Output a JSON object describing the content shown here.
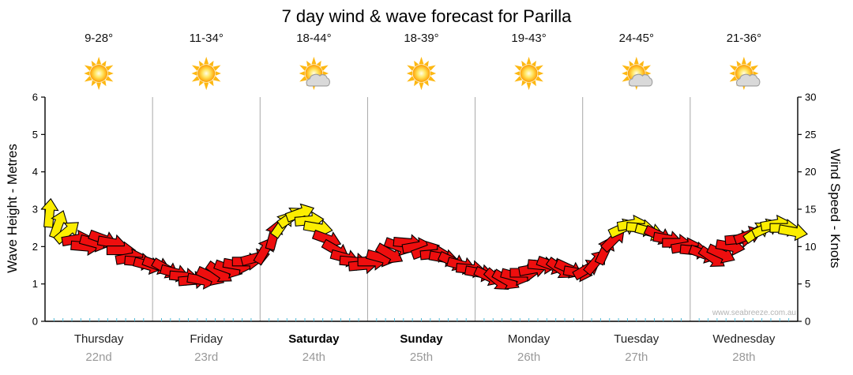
{
  "title": "7 day wind & wave forecast for Parilla",
  "watermark": "www.seabreeze.com.au",
  "days": [
    {
      "name": "Thursday",
      "date": "22nd",
      "temp": "9-28°",
      "icon": "sun",
      "bold": false
    },
    {
      "name": "Friday",
      "date": "23rd",
      "temp": "11-34°",
      "icon": "sun",
      "bold": false
    },
    {
      "name": "Saturday",
      "date": "24th",
      "temp": "18-44°",
      "icon": "sun-cloud",
      "bold": true
    },
    {
      "name": "Sunday",
      "date": "25th",
      "temp": "18-39°",
      "icon": "sun",
      "bold": true
    },
    {
      "name": "Monday",
      "date": "26th",
      "temp": "19-43°",
      "icon": "sun",
      "bold": false
    },
    {
      "name": "Tuesday",
      "date": "27th",
      "temp": "24-45°",
      "icon": "sun-cloud",
      "bold": false
    },
    {
      "name": "Wednesday",
      "date": "28th",
      "temp": "21-36°",
      "icon": "sun-cloud",
      "bold": false
    }
  ],
  "axes": {
    "left_label": "Wave Height - Metres",
    "right_label": "Wind Speed - Knots",
    "left_ticks": [
      0,
      1,
      2,
      3,
      4,
      5,
      6
    ],
    "right_ticks": [
      0,
      5,
      10,
      15,
      20,
      25,
      30
    ],
    "left_max": 6,
    "right_max": 30
  },
  "chart_data": {
    "type": "scatter",
    "subtype": "wind-direction-arrows",
    "x_unit": "hours-from-thursday-00",
    "x_range": [
      0,
      168
    ],
    "y_unit": "knots",
    "y_range": [
      0,
      30
    ],
    "colors": {
      "light_wind": "#ee0e0e",
      "moderate_wind": "#fced00",
      "grid": "#a8a8a8",
      "axis": "#000000",
      "minor_tick": "#4db8d6"
    },
    "color_threshold_knots": 12,
    "point_format": [
      "hour",
      "speed_knots",
      "direction_deg"
    ],
    "points": [
      [
        1,
        14.5,
        -85
      ],
      [
        3,
        13,
        -70
      ],
      [
        5,
        12,
        -40
      ],
      [
        7,
        11,
        -10
      ],
      [
        9,
        10,
        5
      ],
      [
        11,
        10.5,
        15
      ],
      [
        13,
        11,
        20
      ],
      [
        15,
        10.5,
        10
      ],
      [
        17,
        9.5,
        0
      ],
      [
        19,
        8.5,
        -10
      ],
      [
        21,
        8,
        5
      ],
      [
        23,
        7.5,
        15
      ],
      [
        25,
        7.5,
        20
      ],
      [
        27,
        7,
        30
      ],
      [
        29,
        6.5,
        15
      ],
      [
        31,
        6,
        5
      ],
      [
        33,
        5.5,
        -5
      ],
      [
        35,
        5.5,
        10
      ],
      [
        37,
        6,
        25
      ],
      [
        39,
        6.5,
        35
      ],
      [
        41,
        7,
        20
      ],
      [
        43,
        7.5,
        10
      ],
      [
        45,
        8,
        0
      ],
      [
        47,
        8.5,
        -15
      ],
      [
        49,
        9.5,
        -60
      ],
      [
        51,
        11.5,
        -75
      ],
      [
        53,
        13,
        -55
      ],
      [
        55,
        14,
        -35
      ],
      [
        57,
        14.5,
        -20
      ],
      [
        59,
        13.5,
        -5
      ],
      [
        61,
        12.5,
        10
      ],
      [
        63,
        11,
        20
      ],
      [
        65,
        9.5,
        30
      ],
      [
        67,
        8.5,
        15
      ],
      [
        69,
        8,
        5
      ],
      [
        71,
        7.5,
        -5
      ],
      [
        73,
        8,
        0
      ],
      [
        75,
        8.5,
        15
      ],
      [
        77,
        9,
        30
      ],
      [
        79,
        10,
        20
      ],
      [
        81,
        10.5,
        5
      ],
      [
        83,
        10,
        -10
      ],
      [
        85,
        9.5,
        -20
      ],
      [
        87,
        9,
        -5
      ],
      [
        89,
        8.5,
        10
      ],
      [
        91,
        8,
        25
      ],
      [
        93,
        7.5,
        15
      ],
      [
        95,
        7,
        5
      ],
      [
        97,
        6.5,
        10
      ],
      [
        99,
        6,
        25
      ],
      [
        101,
        5.5,
        40
      ],
      [
        103,
        5.5,
        30
      ],
      [
        105,
        6,
        15
      ],
      [
        107,
        6.5,
        0
      ],
      [
        109,
        7,
        -10
      ],
      [
        111,
        7.5,
        5
      ],
      [
        113,
        7.5,
        20
      ],
      [
        115,
        7,
        35
      ],
      [
        117,
        7,
        25
      ],
      [
        119,
        6.5,
        10
      ],
      [
        121,
        7,
        -30
      ],
      [
        123,
        8,
        -50
      ],
      [
        125,
        9.5,
        -65
      ],
      [
        127,
        11,
        -45
      ],
      [
        129,
        12.5,
        -25
      ],
      [
        131,
        13,
        -10
      ],
      [
        133,
        12.5,
        5
      ],
      [
        135,
        12,
        15
      ],
      [
        137,
        11.5,
        25
      ],
      [
        139,
        11,
        10
      ],
      [
        141,
        10.5,
        0
      ],
      [
        143,
        10,
        -10
      ],
      [
        145,
        9.5,
        5
      ],
      [
        147,
        9,
        20
      ],
      [
        149,
        8.5,
        35
      ],
      [
        151,
        9,
        25
      ],
      [
        153,
        10,
        10
      ],
      [
        155,
        11,
        -5
      ],
      [
        157,
        11.5,
        -20
      ],
      [
        159,
        12,
        -35
      ],
      [
        161,
        12.5,
        -25
      ],
      [
        163,
        13,
        -10
      ],
      [
        165,
        12.5,
        0
      ],
      [
        167,
        12,
        10
      ]
    ]
  }
}
